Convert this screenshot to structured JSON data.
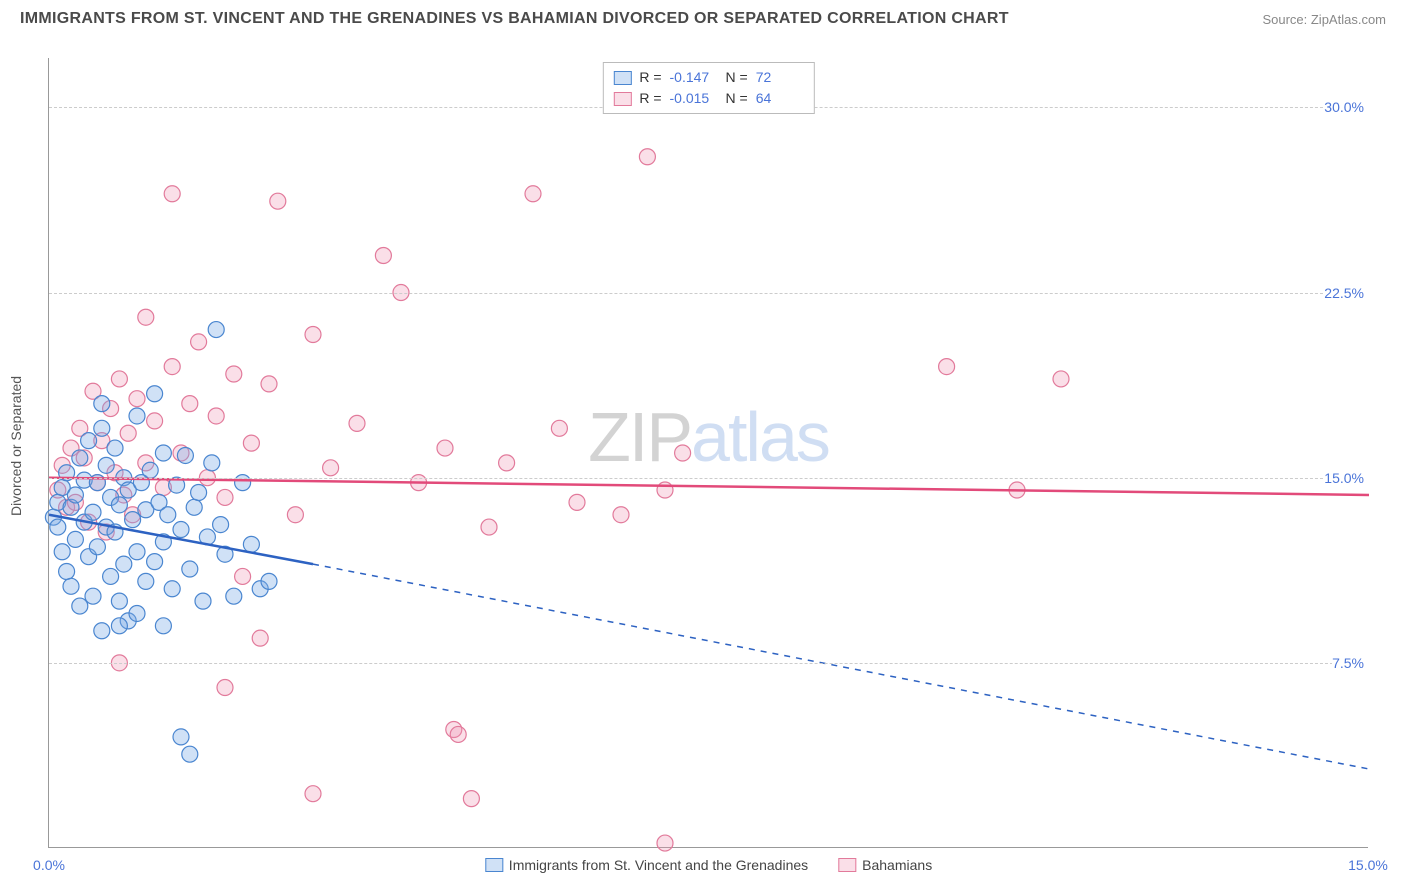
{
  "title": "IMMIGRANTS FROM ST. VINCENT AND THE GRENADINES VS BAHAMIAN DIVORCED OR SEPARATED CORRELATION CHART",
  "source": "Source: ZipAtlas.com",
  "y_axis_title": "Divorced or Separated",
  "watermark_a": "ZIP",
  "watermark_b": "atlas",
  "chart": {
    "type": "scatter",
    "xlim": [
      0,
      15
    ],
    "ylim": [
      0,
      32
    ],
    "y_ticks": [
      7.5,
      15.0,
      22.5,
      30.0
    ],
    "y_tick_labels": [
      "7.5%",
      "15.0%",
      "22.5%",
      "30.0%"
    ],
    "x_tick_left": "0.0%",
    "x_tick_right": "15.0%",
    "grid_color": "#d0d0d0",
    "axis_color": "#999999",
    "background_color": "#ffffff",
    "marker_radius": 8,
    "marker_stroke_width": 1.2,
    "line_width": 2.5,
    "dash_pattern": "6 6",
    "series": [
      {
        "name": "Immigrants from St. Vincent and the Grenadines",
        "color_fill": "rgba(120,170,230,0.35)",
        "color_stroke": "#4a86d0",
        "line_color": "#2d62c2",
        "R": "-0.147",
        "N": "72",
        "trend": {
          "x1": 0,
          "y1": 13.5,
          "x2": 3.0,
          "y2": 11.5,
          "x_dash_end": 15,
          "y_dash_end": 3.2
        },
        "points": [
          [
            0.05,
            13.4
          ],
          [
            0.1,
            14.0
          ],
          [
            0.1,
            13.0
          ],
          [
            0.15,
            14.6
          ],
          [
            0.15,
            12.0
          ],
          [
            0.2,
            15.2
          ],
          [
            0.2,
            11.2
          ],
          [
            0.25,
            13.8
          ],
          [
            0.25,
            10.6
          ],
          [
            0.3,
            14.3
          ],
          [
            0.3,
            12.5
          ],
          [
            0.35,
            15.8
          ],
          [
            0.35,
            9.8
          ],
          [
            0.4,
            13.2
          ],
          [
            0.4,
            14.9
          ],
          [
            0.45,
            11.8
          ],
          [
            0.45,
            16.5
          ],
          [
            0.5,
            13.6
          ],
          [
            0.5,
            10.2
          ],
          [
            0.55,
            14.8
          ],
          [
            0.55,
            12.2
          ],
          [
            0.6,
            18.0
          ],
          [
            0.6,
            17.0
          ],
          [
            0.65,
            13.0
          ],
          [
            0.65,
            15.5
          ],
          [
            0.7,
            11.0
          ],
          [
            0.7,
            14.2
          ],
          [
            0.75,
            12.8
          ],
          [
            0.75,
            16.2
          ],
          [
            0.8,
            13.9
          ],
          [
            0.8,
            10.0
          ],
          [
            0.85,
            15.0
          ],
          [
            0.85,
            11.5
          ],
          [
            0.9,
            14.5
          ],
          [
            0.9,
            9.2
          ],
          [
            0.95,
            13.3
          ],
          [
            1.0,
            12.0
          ],
          [
            1.0,
            17.5
          ],
          [
            1.05,
            14.8
          ],
          [
            1.1,
            10.8
          ],
          [
            1.1,
            13.7
          ],
          [
            1.15,
            15.3
          ],
          [
            1.2,
            11.6
          ],
          [
            1.2,
            18.4
          ],
          [
            1.25,
            14.0
          ],
          [
            1.3,
            12.4
          ],
          [
            1.3,
            16.0
          ],
          [
            1.35,
            13.5
          ],
          [
            1.4,
            10.5
          ],
          [
            1.45,
            14.7
          ],
          [
            1.5,
            12.9
          ],
          [
            1.55,
            15.9
          ],
          [
            1.6,
            11.3
          ],
          [
            1.65,
            13.8
          ],
          [
            1.7,
            14.4
          ],
          [
            1.75,
            10.0
          ],
          [
            1.8,
            12.6
          ],
          [
            1.85,
            15.6
          ],
          [
            1.9,
            21.0
          ],
          [
            1.95,
            13.1
          ],
          [
            2.0,
            11.9
          ],
          [
            2.1,
            10.2
          ],
          [
            2.2,
            14.8
          ],
          [
            2.3,
            12.3
          ],
          [
            2.4,
            10.5
          ],
          [
            0.8,
            9.0
          ],
          [
            1.5,
            4.5
          ],
          [
            1.6,
            3.8
          ],
          [
            0.6,
            8.8
          ],
          [
            1.0,
            9.5
          ],
          [
            1.3,
            9.0
          ],
          [
            2.5,
            10.8
          ]
        ]
      },
      {
        "name": "Bahamians",
        "color_fill": "rgba(240,150,180,0.30)",
        "color_stroke": "#e27a9b",
        "line_color": "#e24a7a",
        "R": "-0.015",
        "N": "64",
        "trend": {
          "x1": 0,
          "y1": 15.0,
          "x2": 15,
          "y2": 14.3,
          "x_dash_end": 15,
          "y_dash_end": 14.3
        },
        "points": [
          [
            0.1,
            14.5
          ],
          [
            0.15,
            15.5
          ],
          [
            0.2,
            13.8
          ],
          [
            0.25,
            16.2
          ],
          [
            0.3,
            14.0
          ],
          [
            0.35,
            17.0
          ],
          [
            0.4,
            15.8
          ],
          [
            0.45,
            13.2
          ],
          [
            0.5,
            18.5
          ],
          [
            0.55,
            14.8
          ],
          [
            0.6,
            16.5
          ],
          [
            0.65,
            12.8
          ],
          [
            0.7,
            17.8
          ],
          [
            0.75,
            15.2
          ],
          [
            0.8,
            19.0
          ],
          [
            0.85,
            14.3
          ],
          [
            0.9,
            16.8
          ],
          [
            0.95,
            13.5
          ],
          [
            1.0,
            18.2
          ],
          [
            1.1,
            21.5
          ],
          [
            1.1,
            15.6
          ],
          [
            1.2,
            17.3
          ],
          [
            1.3,
            14.6
          ],
          [
            1.4,
            19.5
          ],
          [
            1.5,
            16.0
          ],
          [
            1.6,
            18.0
          ],
          [
            1.7,
            20.5
          ],
          [
            1.8,
            15.0
          ],
          [
            1.9,
            17.5
          ],
          [
            2.0,
            14.2
          ],
          [
            2.1,
            19.2
          ],
          [
            2.2,
            11.0
          ],
          [
            2.3,
            16.4
          ],
          [
            2.5,
            18.8
          ],
          [
            2.6,
            26.2
          ],
          [
            2.8,
            13.5
          ],
          [
            3.0,
            20.8
          ],
          [
            3.2,
            15.4
          ],
          [
            3.5,
            17.2
          ],
          [
            3.8,
            24.0
          ],
          [
            4.0,
            22.5
          ],
          [
            4.2,
            14.8
          ],
          [
            4.5,
            16.2
          ],
          [
            4.6,
            4.8
          ],
          [
            4.65,
            4.6
          ],
          [
            4.8,
            2.0
          ],
          [
            5.0,
            13.0
          ],
          [
            5.2,
            15.6
          ],
          [
            5.5,
            26.5
          ],
          [
            5.8,
            17.0
          ],
          [
            6.0,
            14.0
          ],
          [
            6.5,
            13.5
          ],
          [
            6.8,
            28.0
          ],
          [
            7.0,
            14.5
          ],
          [
            7.0,
            0.2
          ],
          [
            7.2,
            16.0
          ],
          [
            10.2,
            19.5
          ],
          [
            11.0,
            14.5
          ],
          [
            11.5,
            19.0
          ],
          [
            2.4,
            8.5
          ],
          [
            3.0,
            2.2
          ],
          [
            1.4,
            26.5
          ],
          [
            0.8,
            7.5
          ],
          [
            2.0,
            6.5
          ]
        ]
      }
    ]
  },
  "bottom_legend": [
    "Immigrants from St. Vincent and the Grenadines",
    "Bahamians"
  ]
}
